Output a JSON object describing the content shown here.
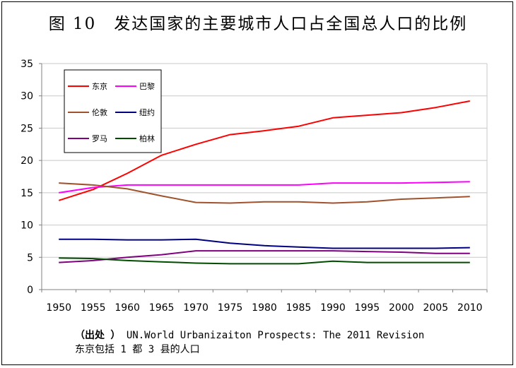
{
  "title": "图 10　发达国家的主要城市人口占全国总人口的比例",
  "source": {
    "label": "（出处 ）",
    "text": "UN.World Urbanizaiton Prospects: The 2011 Revision",
    "note": "东京包括 1 都 3 县的人口"
  },
  "chart_data": {
    "type": "line",
    "title": "图 10　发达国家的主要城市人口占全国总人口的比例",
    "xlabel": "",
    "ylabel": "",
    "x": [
      1950,
      1955,
      1960,
      1965,
      1970,
      1975,
      1980,
      1985,
      1990,
      1995,
      2000,
      2005,
      2010
    ],
    "ylim": [
      0,
      35
    ],
    "yticks": [
      0,
      5,
      10,
      15,
      20,
      25,
      30,
      35
    ],
    "grid": "horizontal",
    "legend_position": "top-left",
    "series": [
      {
        "name": "东京",
        "color": "#ff0000",
        "values": [
          13.8,
          15.5,
          18.0,
          20.8,
          22.5,
          24.0,
          24.6,
          25.3,
          26.6,
          27.0,
          27.4,
          28.2,
          29.2
        ]
      },
      {
        "name": "巴黎",
        "color": "#ff00ff",
        "values": [
          15.0,
          15.8,
          16.2,
          16.2,
          16.2,
          16.2,
          16.2,
          16.2,
          16.5,
          16.5,
          16.5,
          16.6,
          16.7
        ]
      },
      {
        "name": "伦敦",
        "color": "#a0522d",
        "values": [
          16.5,
          16.2,
          15.6,
          14.5,
          13.5,
          13.4,
          13.6,
          13.6,
          13.4,
          13.6,
          14.0,
          14.2,
          14.4
        ]
      },
      {
        "name": "纽约",
        "color": "#000080",
        "values": [
          7.8,
          7.8,
          7.7,
          7.7,
          7.8,
          7.2,
          6.8,
          6.6,
          6.4,
          6.4,
          6.4,
          6.4,
          6.5
        ]
      },
      {
        "name": "罗马",
        "color": "#800080",
        "values": [
          4.2,
          4.5,
          5.0,
          5.4,
          6.0,
          6.0,
          6.0,
          6.0,
          6.0,
          5.9,
          5.8,
          5.6,
          5.6
        ]
      },
      {
        "name": "柏林",
        "color": "#004d00",
        "values": [
          4.9,
          4.8,
          4.5,
          4.3,
          4.1,
          4.0,
          4.0,
          4.0,
          4.4,
          4.2,
          4.2,
          4.2,
          4.2
        ]
      }
    ]
  }
}
